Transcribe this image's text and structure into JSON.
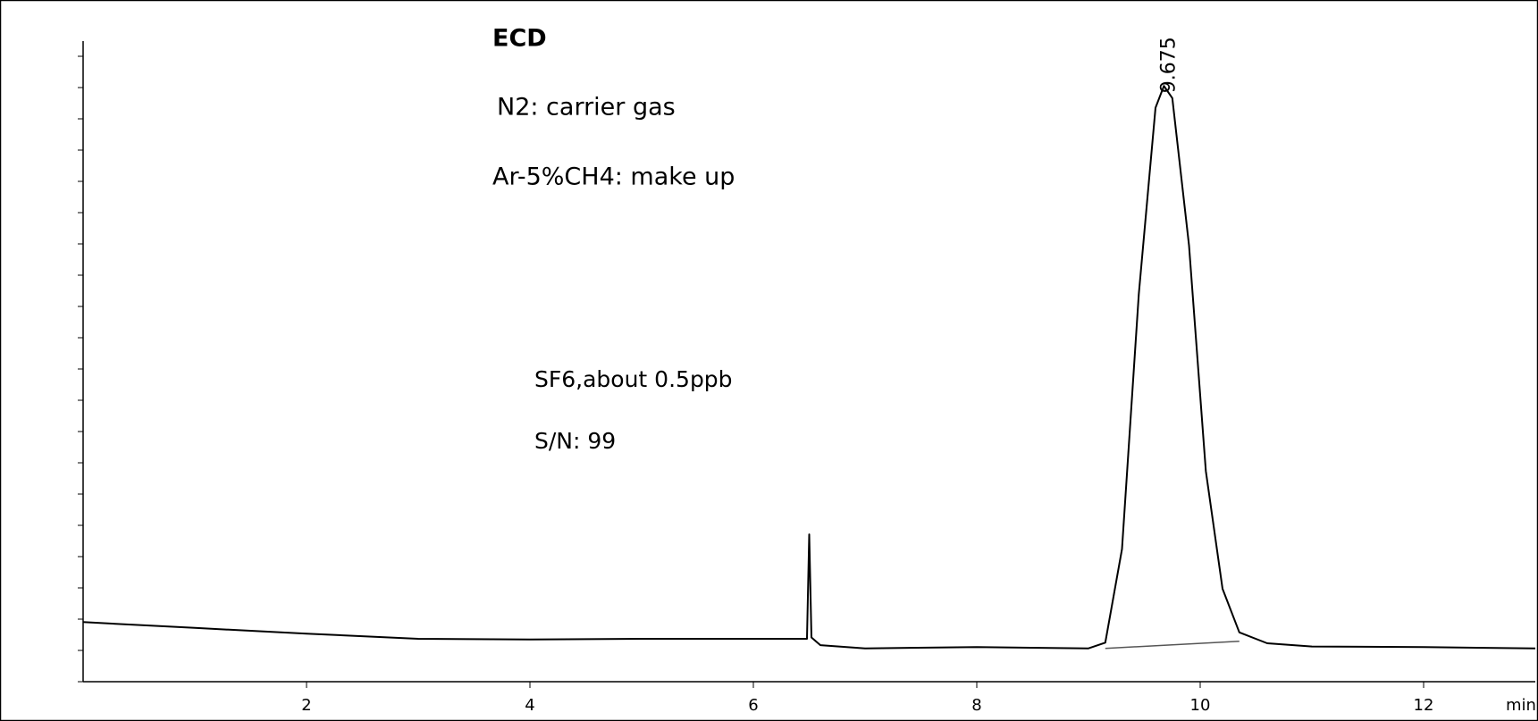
{
  "chart_data": {
    "type": "line",
    "annotations": [
      "ECD",
      "N2:  carrier gas",
      "Ar-5%CH4: make up",
      "SF6,about 0.5ppb",
      "S/N: 99"
    ],
    "peak_label": "9.675",
    "x_label": "min",
    "xlim": [
      0,
      13
    ],
    "xticks": [
      2,
      4,
      6,
      8,
      10,
      12
    ],
    "ylim": [
      0,
      100
    ],
    "series": [
      {
        "color": "#000000",
        "x": [
          0,
          1,
          2,
          3,
          4,
          5,
          6,
          6.48,
          6.5,
          6.52,
          6.6,
          7,
          8,
          9,
          9.15,
          9.3,
          9.45,
          9.6,
          9.675,
          9.75,
          9.9,
          10.05,
          10.2,
          10.35,
          10.6,
          11,
          12,
          13
        ],
        "values": [
          9.3,
          8.4,
          7.5,
          6.7,
          6.6,
          6.7,
          6.7,
          6.7,
          23.0,
          6.9,
          5.7,
          5.2,
          5.4,
          5.2,
          6.1,
          20.7,
          60.5,
          89.6,
          93.0,
          91.1,
          68.1,
          32.9,
          14.5,
          7.7,
          6.0,
          5.5,
          5.4,
          5.2
        ]
      },
      {
        "color": "#555555",
        "x": [
          9.15,
          10.35
        ],
        "values": [
          5.2,
          6.3
        ]
      }
    ]
  }
}
